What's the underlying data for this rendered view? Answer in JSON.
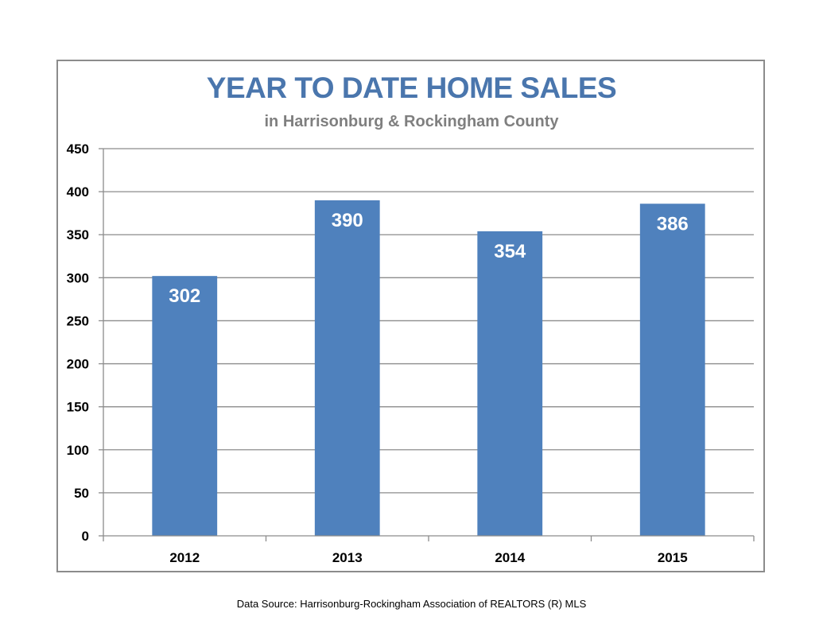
{
  "chart_data": {
    "type": "bar",
    "title": "YEAR TO DATE HOME SALES",
    "subtitle": "in Harrisonburg & Rockingham County",
    "categories": [
      "2012",
      "2013",
      "2014",
      "2015"
    ],
    "values": [
      302,
      390,
      354,
      386
    ],
    "data_labels": [
      "302",
      "390",
      "354",
      "386"
    ],
    "y_ticks": [
      0,
      50,
      100,
      150,
      200,
      250,
      300,
      350,
      400,
      450
    ],
    "ylim": [
      0,
      450
    ],
    "xlabel": "",
    "ylabel": "",
    "grid": true,
    "legend": "none",
    "bar_color": "#4f81bd",
    "title_color": "#4a76ad",
    "subtitle_color": "#7f7f7f"
  },
  "footer": {
    "source": "Data Source: Harrisonburg-Rockingham Association of REALTORS (R) MLS"
  }
}
